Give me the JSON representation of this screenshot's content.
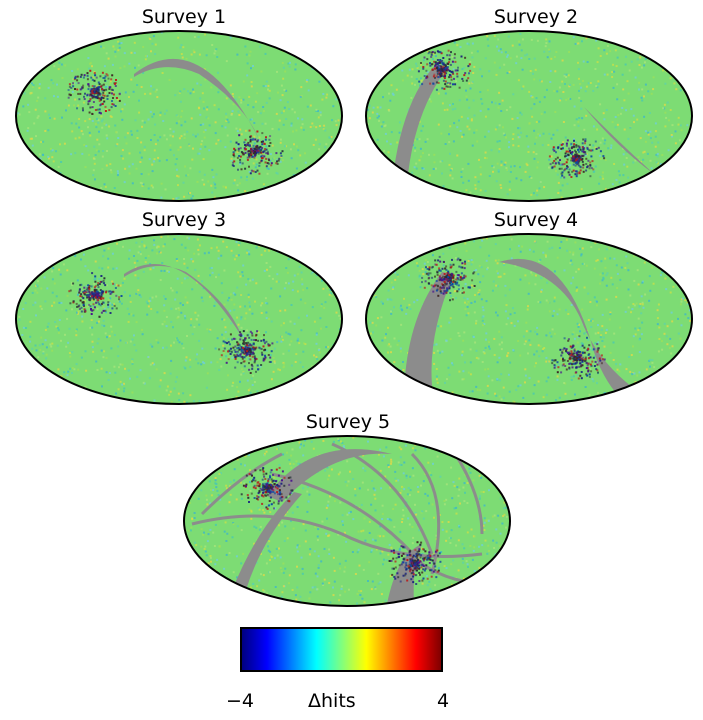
{
  "maps": [
    {
      "title": "Survey 1"
    },
    {
      "title": "Survey 2"
    },
    {
      "title": "Survey 3"
    },
    {
      "title": "Survey 4"
    },
    {
      "title": "Survey 5"
    }
  ],
  "colorbar": {
    "label": "Δhits",
    "min_label": "−4",
    "max_label": "4",
    "colormap": "jet",
    "colors": [
      "#00007f",
      "#0000ff",
      "#007fff",
      "#00ffff",
      "#7fff7f",
      "#ffff00",
      "#ff7f00",
      "#ff0000",
      "#7f0000"
    ]
  },
  "colors": {
    "background_field": "#7ddc74",
    "masked": "#8c8c8c",
    "outline": "#000000"
  }
}
